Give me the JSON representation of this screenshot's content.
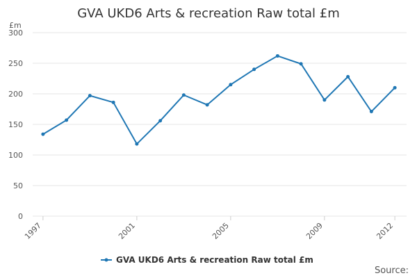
{
  "chart_data": {
    "type": "line",
    "title": "GVA UKD6 Arts & recreation Raw total £m",
    "ylabel": "£m",
    "xlabel": "",
    "ylim": [
      0,
      300
    ],
    "yticks": [
      0,
      50,
      100,
      150,
      200,
      250,
      300
    ],
    "xticks": [
      1997,
      2001,
      2005,
      2009,
      2012
    ],
    "x": [
      1997,
      1998,
      1999,
      2000,
      2001,
      2002,
      2003,
      2004,
      2005,
      2006,
      2007,
      2008,
      2009,
      2010,
      2011,
      2012
    ],
    "series": [
      {
        "name": "GVA UKD6 Arts & recreation Raw total £m",
        "color": "#1f77b4",
        "values": [
          134,
          157,
          197,
          186,
          118,
          156,
          198,
          182,
          215,
          240,
          262,
          249,
          190,
          228,
          171,
          210
        ]
      }
    ],
    "grid": true,
    "legend_position": "bottom",
    "source_label": "Source:"
  }
}
